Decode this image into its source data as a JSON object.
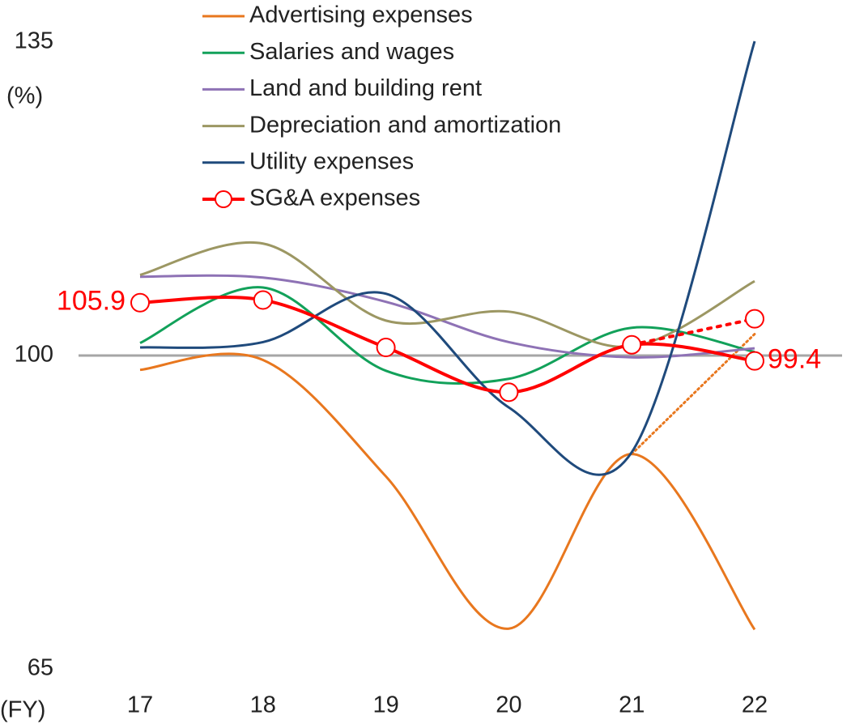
{
  "chart_data": {
    "type": "line",
    "categories": [
      "17",
      "18",
      "19",
      "20",
      "21",
      "22"
    ],
    "x_label": "(FY)",
    "y_label": "(%)",
    "ylim": [
      65,
      135
    ],
    "yticks": [
      65,
      100,
      135
    ],
    "hline": 100,
    "series": [
      {
        "name": "Advertising expenses",
        "color": "#e8771e",
        "values": [
          98.4,
          99.5,
          86.5,
          69.5,
          89,
          69.4
        ],
        "dotted_to": 102.4
      },
      {
        "name": "Salaries and wages",
        "color": "#12a15a",
        "values": [
          101.4,
          107.6,
          98.3,
          97.4,
          103.1,
          100.4
        ]
      },
      {
        "name": "Land and building rent",
        "color": "#8e72b5",
        "values": [
          108.8,
          108.7,
          106,
          101.5,
          99.8,
          100.8
        ]
      },
      {
        "name": "Depreciation and amortization",
        "color": "#9c9763",
        "values": [
          109,
          112.5,
          103.9,
          104.9,
          101,
          108.3
        ]
      },
      {
        "name": "Utility expenses",
        "color": "#1f4a7c",
        "values": [
          100.9,
          101.5,
          106.9,
          94.2,
          89.2,
          135.1
        ]
      },
      {
        "name": "SG&A  expenses",
        "color": "#ff0000",
        "values": [
          105.9,
          106.2,
          100.9,
          95.9,
          101.2,
          99.4
        ],
        "markers": true,
        "dotted_to": 104.1
      }
    ]
  }
}
